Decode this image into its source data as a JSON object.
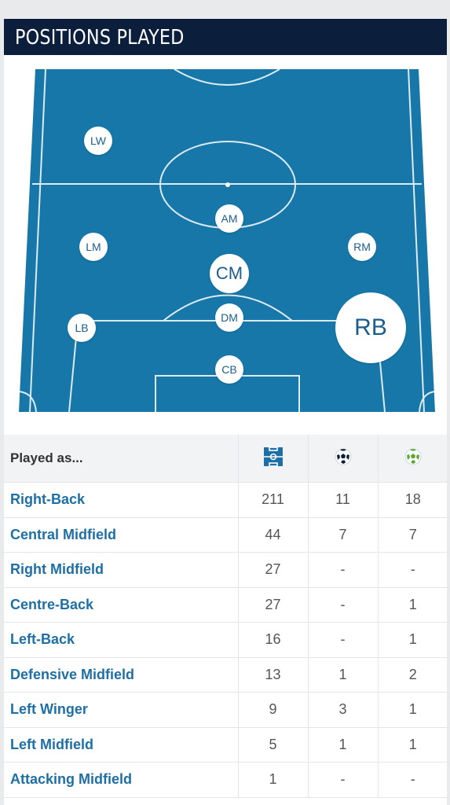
{
  "header": {
    "title": "POSITIONS PLAYED"
  },
  "colors": {
    "header_bg": "#0b1f3d",
    "pitch": "#1677a8",
    "link": "#1d6fa5"
  },
  "pitch": {
    "positions": [
      {
        "code": "LW",
        "size": "small"
      },
      {
        "code": "AM",
        "size": "small"
      },
      {
        "code": "LM",
        "size": "small"
      },
      {
        "code": "RM",
        "size": "small"
      },
      {
        "code": "CM",
        "size": "medium"
      },
      {
        "code": "DM",
        "size": "small"
      },
      {
        "code": "LB",
        "size": "small"
      },
      {
        "code": "RB",
        "size": "large"
      },
      {
        "code": "CB",
        "size": "small"
      }
    ]
  },
  "table": {
    "header": {
      "label": "Played as...",
      "icons": [
        "pitch-appearances-icon",
        "ball-goals-icon",
        "ball-assists-icon"
      ]
    },
    "rows": [
      {
        "position": "Right-Back",
        "apps": "211",
        "goals": "11",
        "assists": "18"
      },
      {
        "position": "Central Midfield",
        "apps": "44",
        "goals": "7",
        "assists": "7"
      },
      {
        "position": "Right Midfield",
        "apps": "27",
        "goals": "-",
        "assists": "-"
      },
      {
        "position": "Centre-Back",
        "apps": "27",
        "goals": "-",
        "assists": "1"
      },
      {
        "position": "Left-Back",
        "apps": "16",
        "goals": "-",
        "assists": "1"
      },
      {
        "position": "Defensive Midfield",
        "apps": "13",
        "goals": "1",
        "assists": "2"
      },
      {
        "position": "Left Winger",
        "apps": "9",
        "goals": "3",
        "assists": "1"
      },
      {
        "position": "Left Midfield",
        "apps": "5",
        "goals": "1",
        "assists": "1"
      },
      {
        "position": "Attacking Midfield",
        "apps": "1",
        "goals": "-",
        "assists": "-"
      }
    ]
  }
}
